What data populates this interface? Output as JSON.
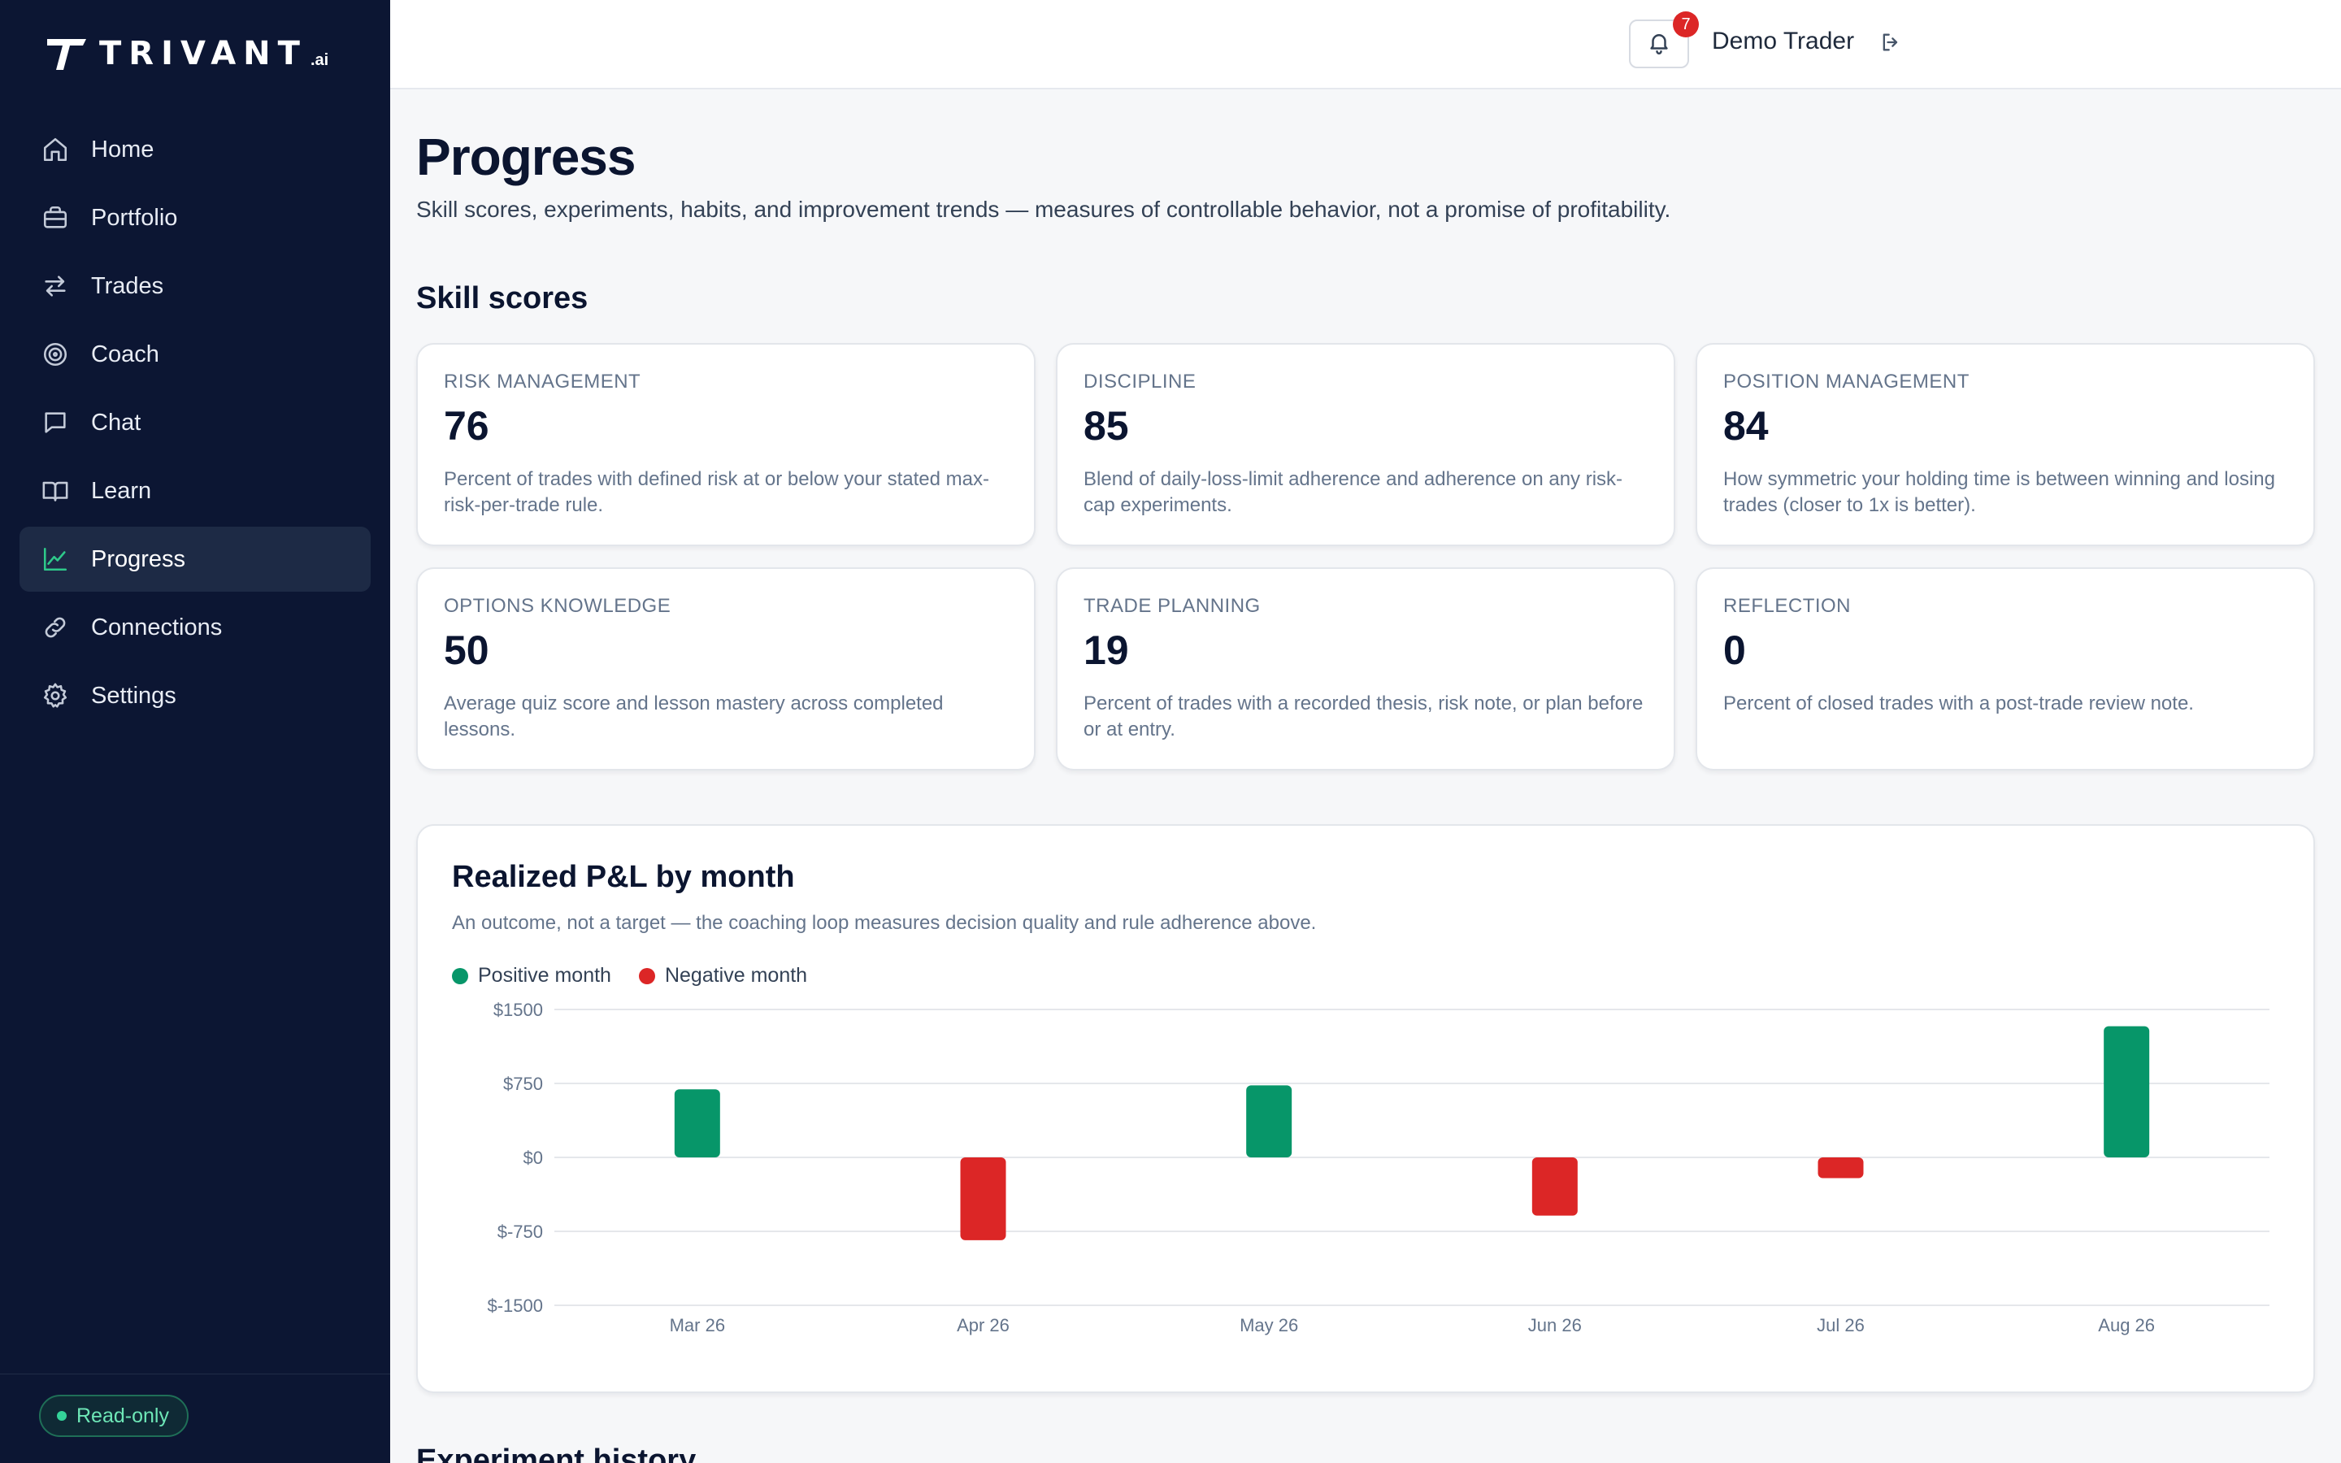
{
  "brand": {
    "name": "TRIVANT",
    "suffix": ".ai"
  },
  "sidebar": {
    "items": [
      {
        "label": "Home",
        "icon": "home-icon",
        "active": false
      },
      {
        "label": "Portfolio",
        "icon": "briefcase-icon",
        "active": false
      },
      {
        "label": "Trades",
        "icon": "swap-arrows-icon",
        "active": false
      },
      {
        "label": "Coach",
        "icon": "target-icon",
        "active": false
      },
      {
        "label": "Chat",
        "icon": "chat-bubble-icon",
        "active": false
      },
      {
        "label": "Learn",
        "icon": "book-icon",
        "active": false
      },
      {
        "label": "Progress",
        "icon": "trend-chart-icon",
        "active": true
      },
      {
        "label": "Connections",
        "icon": "link-icon",
        "active": false
      },
      {
        "label": "Settings",
        "icon": "gear-icon",
        "active": false
      }
    ],
    "readonly_label": "Read-only"
  },
  "header": {
    "notification_count": "7",
    "user_name": "Demo Trader"
  },
  "main": {
    "title": "Progress",
    "subtitle": "Skill scores, experiments, habits, and improvement trends — measures of controllable behavior, not a promise of profitability.",
    "skill_section_title": "Skill scores",
    "skills": [
      {
        "label": "Risk Management",
        "value": "76",
        "description": "Percent of trades with defined risk at or below your stated max-risk-per-trade rule."
      },
      {
        "label": "Discipline",
        "value": "85",
        "description": "Blend of daily-loss-limit adherence and adherence on any risk-cap experiments."
      },
      {
        "label": "Position Management",
        "value": "84",
        "description": "How symmetric your holding time is between winning and losing trades (closer to 1x is better)."
      },
      {
        "label": "Options Knowledge",
        "value": "50",
        "description": "Average quiz score and lesson mastery across completed lessons."
      },
      {
        "label": "Trade Planning",
        "value": "19",
        "description": "Percent of trades with a recorded thesis, risk note, or plan before or at entry."
      },
      {
        "label": "Reflection",
        "value": "0",
        "description": "Percent of closed trades with a post-trade review note."
      }
    ],
    "next_section_title": "Experiment history"
  },
  "chart_data": {
    "type": "bar",
    "title": "Realized P&L by month",
    "subtitle": "An outcome, not a target — the coaching loop measures decision quality and rule adherence above.",
    "categories": [
      "Mar 26",
      "Apr 26",
      "May 26",
      "Jun 26",
      "Jul 26",
      "Aug 26"
    ],
    "values": [
      690,
      -840,
      730,
      -590,
      -210,
      1330
    ],
    "ylim": [
      -1500,
      1500
    ],
    "yticks": [
      1500,
      750,
      0,
      -750,
      -1500
    ],
    "ytick_labels": [
      "$1500",
      "$750",
      "$0",
      "$-750",
      "$-1500"
    ],
    "legend": [
      {
        "label": "Positive month",
        "color": "#079669"
      },
      {
        "label": "Negative month",
        "color": "#dc2626"
      }
    ],
    "legend_placement": "top-left",
    "grid": true,
    "colors": {
      "positive": "#079669",
      "negative": "#dc2626"
    }
  }
}
